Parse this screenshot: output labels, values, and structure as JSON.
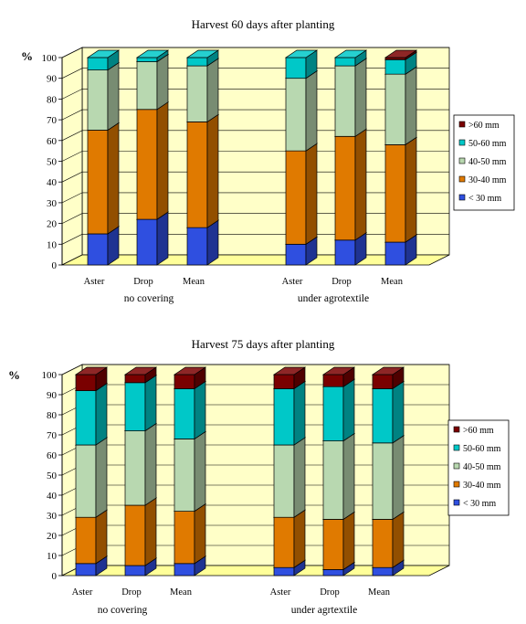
{
  "colors": {
    "lt30": "#2f4fe0",
    "c3040": "#e07a00",
    "c4050": "#b8d8b0",
    "c5060": "#00c8c8",
    "gt60": "#7a0000",
    "wall": "#ffffc8",
    "floor": "#ffff99"
  },
  "chart_data": [
    {
      "type": "bar",
      "stacked": true,
      "title": "Harvest 60 days after planting",
      "ylabel": "%",
      "ylim": [
        0,
        100
      ],
      "yticks": [
        0,
        10,
        20,
        30,
        40,
        50,
        60,
        70,
        80,
        90,
        100
      ],
      "categories": [
        "Aster",
        "Drop",
        "Mean",
        "Aster",
        "Drop",
        "Mean"
      ],
      "groups": [
        "no covering",
        "under agrotextile"
      ],
      "legend_position": "right",
      "series": [
        {
          "name": "< 30 mm",
          "color_key": "lt30",
          "values": [
            15,
            22,
            18,
            10,
            12,
            11
          ]
        },
        {
          "name": "30-40 mm",
          "color_key": "c3040",
          "values": [
            50,
            53,
            51,
            45,
            50,
            47
          ]
        },
        {
          "name": "40-50 mm",
          "color_key": "c4050",
          "values": [
            29,
            23,
            27,
            35,
            34,
            34
          ]
        },
        {
          "name": "50-60 mm",
          "color_key": "c5060",
          "values": [
            6,
            2,
            4,
            10,
            4,
            7
          ]
        },
        {
          "name": ">60 mm",
          "color_key": "gt60",
          "values": [
            0,
            0,
            0,
            0,
            0,
            1
          ]
        }
      ]
    },
    {
      "type": "bar",
      "stacked": true,
      "title": "Harvest 75 days after planting",
      "ylabel": "%",
      "ylim": [
        0,
        100
      ],
      "yticks": [
        0,
        10,
        20,
        30,
        40,
        50,
        60,
        70,
        80,
        90,
        100
      ],
      "categories": [
        "Aster",
        "Drop",
        "Mean",
        "Aster",
        "Drop",
        "Mean"
      ],
      "groups": [
        "no covering",
        "under agrtextile"
      ],
      "legend_position": "right",
      "series": [
        {
          "name": "< 30 mm",
          "color_key": "lt30",
          "values": [
            6,
            5,
            6,
            4,
            3,
            4
          ]
        },
        {
          "name": "30-40 mm",
          "color_key": "c3040",
          "values": [
            23,
            30,
            26,
            25,
            25,
            24
          ]
        },
        {
          "name": "40-50 mm",
          "color_key": "c4050",
          "values": [
            36,
            37,
            36,
            36,
            39,
            38
          ]
        },
        {
          "name": "50-60 mm",
          "color_key": "c5060",
          "values": [
            27,
            24,
            25,
            28,
            27,
            27
          ]
        },
        {
          "name": ">60 mm",
          "color_key": "gt60",
          "values": [
            8,
            4,
            7,
            7,
            6,
            7
          ]
        }
      ]
    }
  ]
}
